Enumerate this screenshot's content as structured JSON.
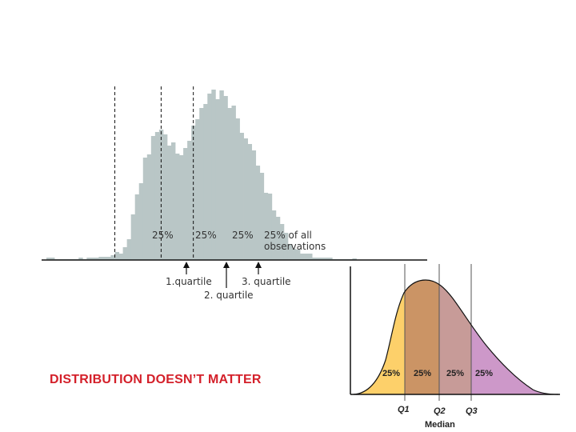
{
  "slide": {
    "caption": "DISTRIBUTION DOESN’T MATTER"
  },
  "chart_data": [
    {
      "type": "bar",
      "name": "histogram",
      "color": "#b9c6c6",
      "xlim": [
        0,
        94
      ],
      "ylim": [
        0,
        215
      ],
      "values": [
        3,
        3,
        1,
        1,
        1,
        1,
        1,
        1,
        3,
        1,
        3,
        3,
        3,
        4,
        4,
        4,
        6,
        10,
        8,
        16,
        26,
        57,
        82,
        96,
        128,
        132,
        155,
        160,
        163,
        157,
        143,
        147,
        133,
        131,
        140,
        149,
        168,
        176,
        190,
        195,
        208,
        213,
        201,
        212,
        205,
        190,
        193,
        177,
        159,
        152,
        145,
        137,
        118,
        109,
        84,
        83,
        62,
        54,
        45,
        34,
        20,
        14,
        13,
        8,
        8,
        8,
        3,
        3,
        3,
        3,
        3,
        1,
        1,
        1,
        1,
        1,
        2
      ],
      "quartile_bins": [
        17,
        28.5,
        36.5
      ],
      "region_labels": [
        "25%",
        "25%",
        "25%",
        "25% of all",
        "observations"
      ],
      "quartile_labels": [
        "1.quartile",
        "2. quartile",
        "3. quartile"
      ]
    },
    {
      "type": "area",
      "name": "skewed-distribution",
      "regions": [
        {
          "label": "25%",
          "color": "#fdd06a"
        },
        {
          "label": "25%",
          "color": "#cb9465"
        },
        {
          "label": "25%",
          "color": "#c79b98"
        },
        {
          "label": "25%",
          "color": "#cd98c9"
        }
      ],
      "quartile_labels": [
        "Q1",
        "Q2",
        "Q3"
      ],
      "median_label": "Median"
    }
  ]
}
